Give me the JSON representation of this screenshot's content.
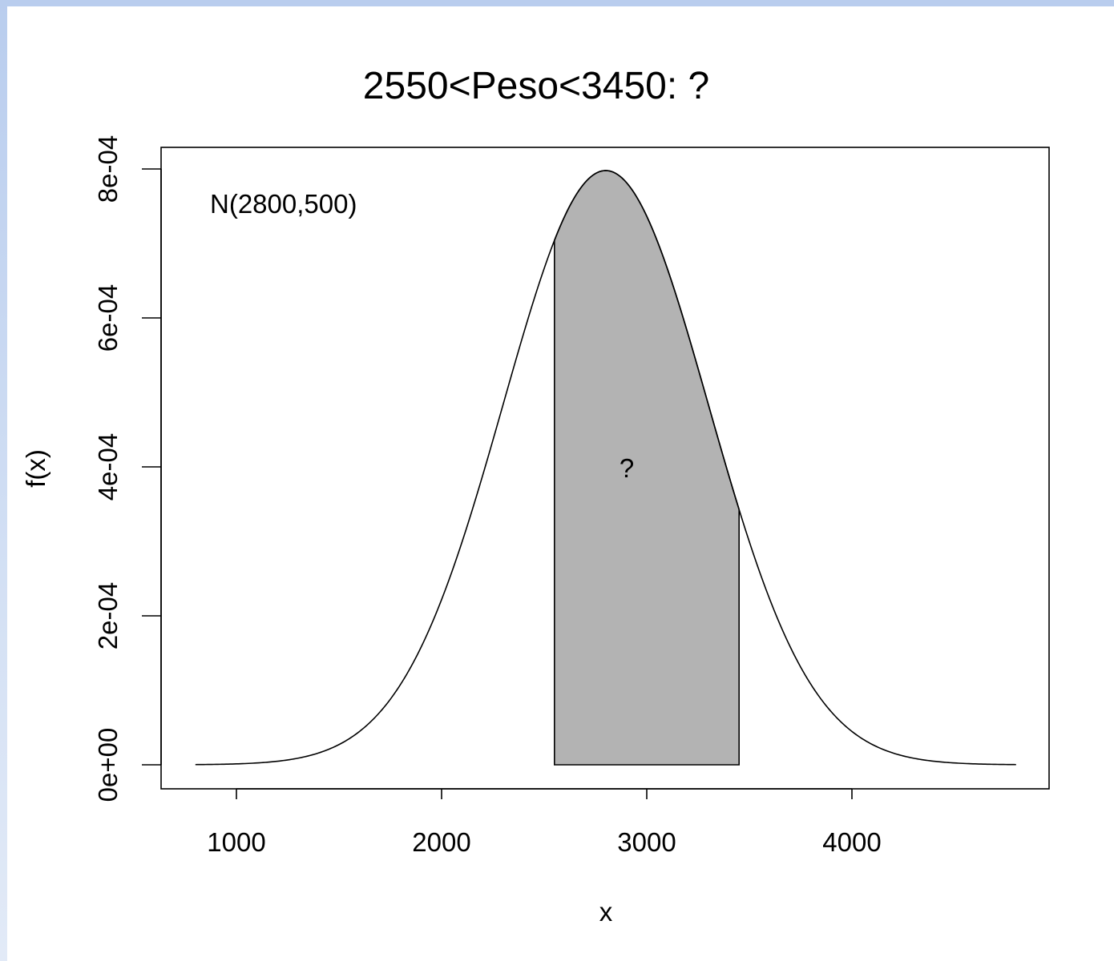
{
  "chart_data": {
    "type": "area",
    "title": "2550<Peso<3450: ?",
    "xlabel": "x",
    "ylabel": "f(x)",
    "xlim": [
      800,
      4800
    ],
    "ylim": [
      0,
      0.0008
    ],
    "x_ticks": [
      1000,
      2000,
      3000,
      4000
    ],
    "x_tick_labels": [
      "1000",
      "2000",
      "3000",
      "4000"
    ],
    "y_ticks": [
      0,
      0.0002,
      0.0004,
      0.0006,
      0.0008
    ],
    "y_tick_labels": [
      "0e+00",
      "2e-04",
      "4e-04",
      "6e-04",
      "8e-04"
    ],
    "distribution": {
      "family": "normal",
      "mean": 2800,
      "sd": 500,
      "x_range": [
        800,
        4800
      ]
    },
    "shaded_region": {
      "from": 2550,
      "to": 3450,
      "fill_color": "#b3b3b3",
      "label": "?"
    },
    "annotation": "N(2800,500)",
    "grid": false
  }
}
